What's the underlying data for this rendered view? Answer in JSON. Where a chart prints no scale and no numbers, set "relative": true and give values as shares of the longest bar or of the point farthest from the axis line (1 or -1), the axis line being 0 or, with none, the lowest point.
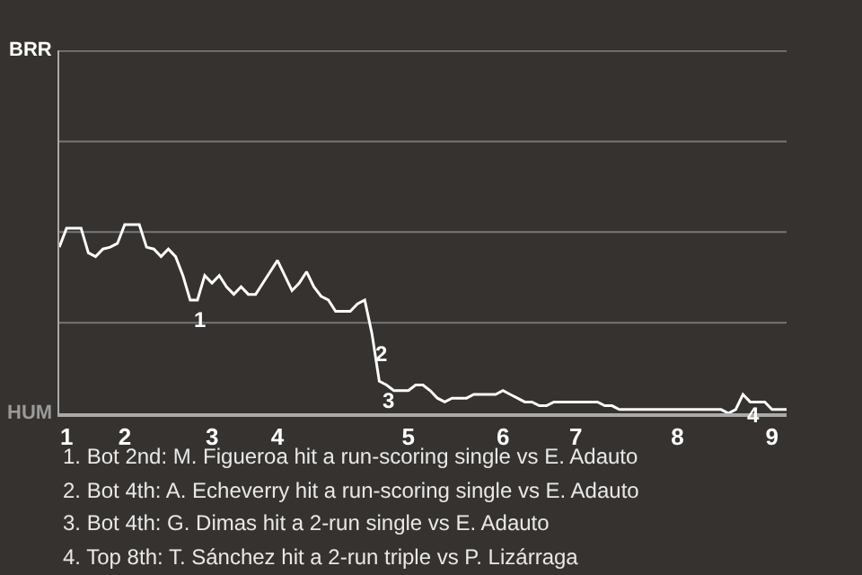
{
  "chart_data": {
    "type": "line",
    "relative": true,
    "categories": [
      null,
      "1",
      null,
      null,
      null,
      null,
      null,
      null,
      null,
      "2",
      null,
      null,
      null,
      null,
      null,
      null,
      null,
      null,
      null,
      null,
      null,
      "3",
      null,
      null,
      null,
      null,
      null,
      null,
      null,
      null,
      "4",
      null,
      null,
      null,
      null,
      null,
      null,
      null,
      null,
      null,
      null,
      null,
      null,
      null,
      null,
      null,
      null,
      null,
      "5",
      null,
      null,
      null,
      null,
      null,
      null,
      null,
      null,
      null,
      null,
      null,
      null,
      "6",
      null,
      null,
      null,
      null,
      null,
      null,
      null,
      null,
      null,
      "7",
      null,
      null,
      null,
      null,
      null,
      null,
      null,
      null,
      null,
      null,
      null,
      null,
      null,
      "8",
      null,
      null,
      null,
      null,
      null,
      null,
      null,
      null,
      null,
      null,
      null,
      null,
      "9",
      null,
      null
    ],
    "series": [
      {
        "color": "#ffffff",
        "values": [
          0.88,
          0.98,
          0.98,
          0.98,
          0.85,
          0.83,
          0.87,
          0.88,
          0.9,
          1,
          1,
          1,
          0.88,
          0.87,
          0.83,
          0.87,
          0.83,
          0.73,
          0.6,
          0.6,
          0.73,
          0.69,
          0.73,
          0.67,
          0.63,
          0.67,
          0.63,
          0.63,
          0.69,
          0.75,
          0.81,
          0.73,
          0.65,
          0.69,
          0.75,
          0.67,
          0.62,
          0.6,
          0.54,
          0.54,
          0.54,
          0.58,
          0.6,
          0.42,
          0.17,
          0.15,
          0.12,
          0.12,
          0.12,
          0.15,
          0.15,
          0.12,
          0.08,
          0.06,
          0.08,
          0.08,
          0.08,
          0.1,
          0.1,
          0.1,
          0.1,
          0.12,
          0.1,
          0.08,
          0.06,
          0.06,
          0.04,
          0.04,
          0.06,
          0.06,
          0.06,
          0.06,
          0.06,
          0.06,
          0.06,
          0.04,
          0.04,
          0.02,
          0.02,
          0.02,
          0.02,
          0.02,
          0.02,
          0.02,
          0.02,
          0.02,
          0.02,
          0.02,
          0.02,
          0.02,
          0.02,
          0.02,
          0,
          0.02,
          0.1,
          0.06,
          0.06,
          0.06,
          0.02,
          0.02,
          0.02
        ]
      }
    ],
    "ref_lines": [
      {
        "axis": "y",
        "value": 0.48,
        "color": "#777777"
      },
      {
        "axis": "y",
        "value": 0.96,
        "color": "#777777"
      },
      {
        "axis": "y",
        "value": 1.44,
        "color": "#777777"
      },
      {
        "axis": "y",
        "value": 1.92,
        "color": "#777777"
      }
    ],
    "annotations": [
      "BRR",
      "HUM",
      "1",
      "2",
      "3",
      "4",
      "1. Bot 2nd: M. Figueroa hit a run-scoring single vs E. Adauto",
      "2. Bot 4th: A. Echeverry hit a run-scoring single vs E. Adauto",
      "3. Bot 4th: G. Dimas hit a 2-run single vs E. Adauto",
      "4. Top 8th: T. Sánchez hit a 2-run triple vs P. Lizárraga"
    ],
    "marker": "none",
    "line_style": "solid"
  }
}
